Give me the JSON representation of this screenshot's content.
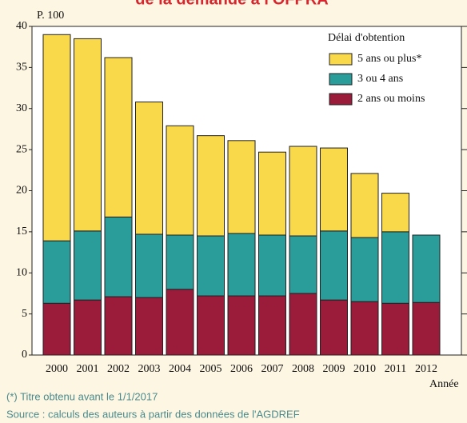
{
  "chart_data": {
    "type": "stacked_bar",
    "title": "de la demande à l'OFPRA",
    "y_label": "P. 100",
    "x_label": "Année",
    "categories": [
      "2000",
      "2001",
      "2002",
      "2003",
      "2004",
      "2005",
      "2006",
      "2007",
      "2008",
      "2009",
      "2010",
      "2011",
      "2012"
    ],
    "series": [
      {
        "name": "2 ans ou moins",
        "color": "#9b1b3b",
        "values": [
          6.3,
          6.7,
          7.1,
          7.0,
          8.0,
          7.2,
          7.2,
          7.2,
          7.5,
          6.7,
          6.5,
          6.3,
          6.4
        ]
      },
      {
        "name": "3 ou 4 ans",
        "color": "#2a9d9a",
        "values": [
          7.6,
          8.4,
          9.7,
          7.7,
          6.6,
          7.3,
          7.6,
          7.4,
          7.0,
          8.4,
          7.8,
          8.7,
          8.2
        ]
      },
      {
        "name": "5 ans ou plus*",
        "color": "#f9d849",
        "values": [
          25.1,
          23.4,
          19.4,
          16.1,
          13.3,
          12.2,
          11.3,
          10.1,
          10.9,
          10.1,
          7.8,
          4.7,
          0
        ]
      }
    ],
    "legend_title": "Délai d'obtention",
    "legend_position": "upper right",
    "ylim": [
      0,
      40
    ],
    "yticks": [
      0,
      5,
      10,
      15,
      20,
      25,
      30,
      35,
      40
    ],
    "notes": [
      "(*) Titre obtenu avant le 1/1/2017",
      "Source : calculs des auteurs à partir des données de l'AGDREF"
    ]
  }
}
